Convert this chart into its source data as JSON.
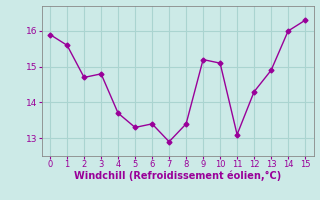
{
  "x": [
    0,
    1,
    2,
    3,
    4,
    5,
    6,
    7,
    8,
    9,
    10,
    11,
    12,
    13,
    14,
    15
  ],
  "y": [
    15.9,
    15.6,
    14.7,
    14.8,
    13.7,
    13.3,
    13.4,
    12.9,
    13.4,
    15.2,
    15.1,
    13.1,
    14.3,
    14.9,
    16.0,
    16.3
  ],
  "line_color": "#990099",
  "marker": "D",
  "marker_size": 2.5,
  "background_color": "#cceae7",
  "grid_color": "#aad4d0",
  "axis_color": "#888888",
  "tick_color": "#990099",
  "xlabel": "Windchill (Refroidissement éolien,°C)",
  "xlabel_fontsize": 7,
  "yticks": [
    13,
    14,
    15,
    16
  ],
  "xticks": [
    0,
    1,
    2,
    3,
    4,
    5,
    6,
    7,
    8,
    9,
    10,
    11,
    12,
    13,
    14,
    15
  ],
  "ylim": [
    12.5,
    16.7
  ],
  "xlim": [
    -0.5,
    15.5
  ]
}
